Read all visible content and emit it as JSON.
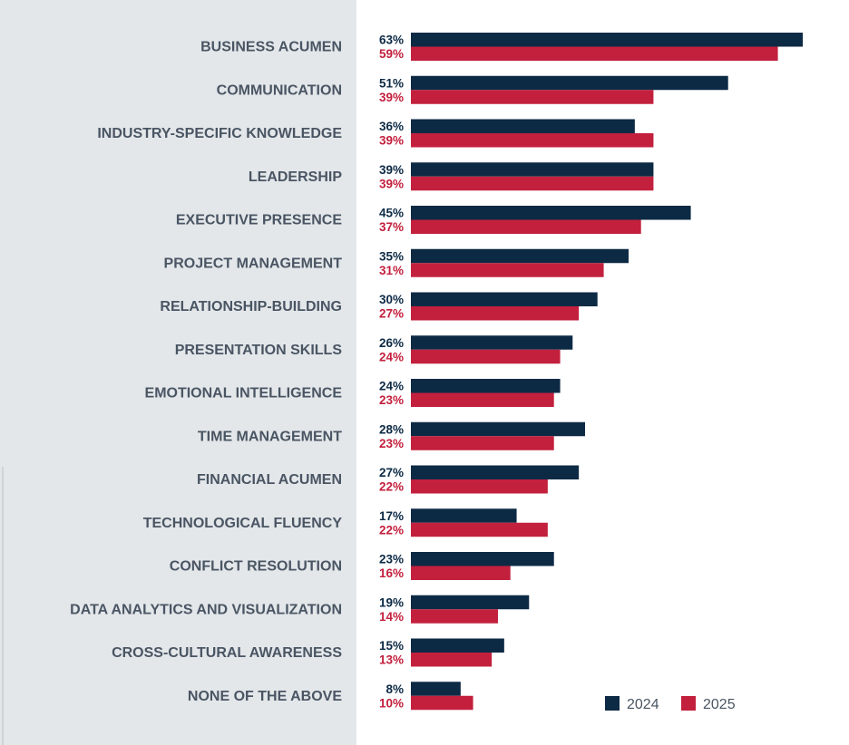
{
  "chart_data": {
    "type": "bar",
    "orientation": "horizontal",
    "title": "",
    "xlabel": "",
    "ylabel": "",
    "xlim": [
      0,
      63
    ],
    "grid": false,
    "legend_position": "bottom-right",
    "value_suffix": "%",
    "categories": [
      "BUSINESS ACUMEN",
      "COMMUNICATION",
      "INDUSTRY-SPECIFIC KNOWLEDGE",
      "LEADERSHIP",
      "EXECUTIVE PRESENCE",
      "PROJECT MANAGEMENT",
      "RELATIONSHIP-BUILDING",
      "PRESENTATION SKILLS",
      "EMOTIONAL INTELLIGENCE",
      "TIME MANAGEMENT",
      "FINANCIAL ACUMEN",
      "TECHNOLOGICAL FLUENCY",
      "CONFLICT RESOLUTION",
      "DATA ANALYTICS AND VISUALIZATION",
      "CROSS-CULTURAL AWARENESS",
      "NONE OF THE ABOVE"
    ],
    "series": [
      {
        "name": "2024",
        "color": "#0d2a45",
        "values": [
          63,
          51,
          36,
          39,
          45,
          35,
          30,
          26,
          24,
          28,
          27,
          17,
          23,
          19,
          15,
          8
        ]
      },
      {
        "name": "2025",
        "color": "#c3203e",
        "values": [
          59,
          39,
          39,
          39,
          37,
          31,
          27,
          24,
          23,
          23,
          22,
          22,
          16,
          14,
          13,
          10
        ]
      }
    ]
  },
  "colors": {
    "panel_background": "#e3e7ea",
    "category_text": "#4a5563"
  }
}
